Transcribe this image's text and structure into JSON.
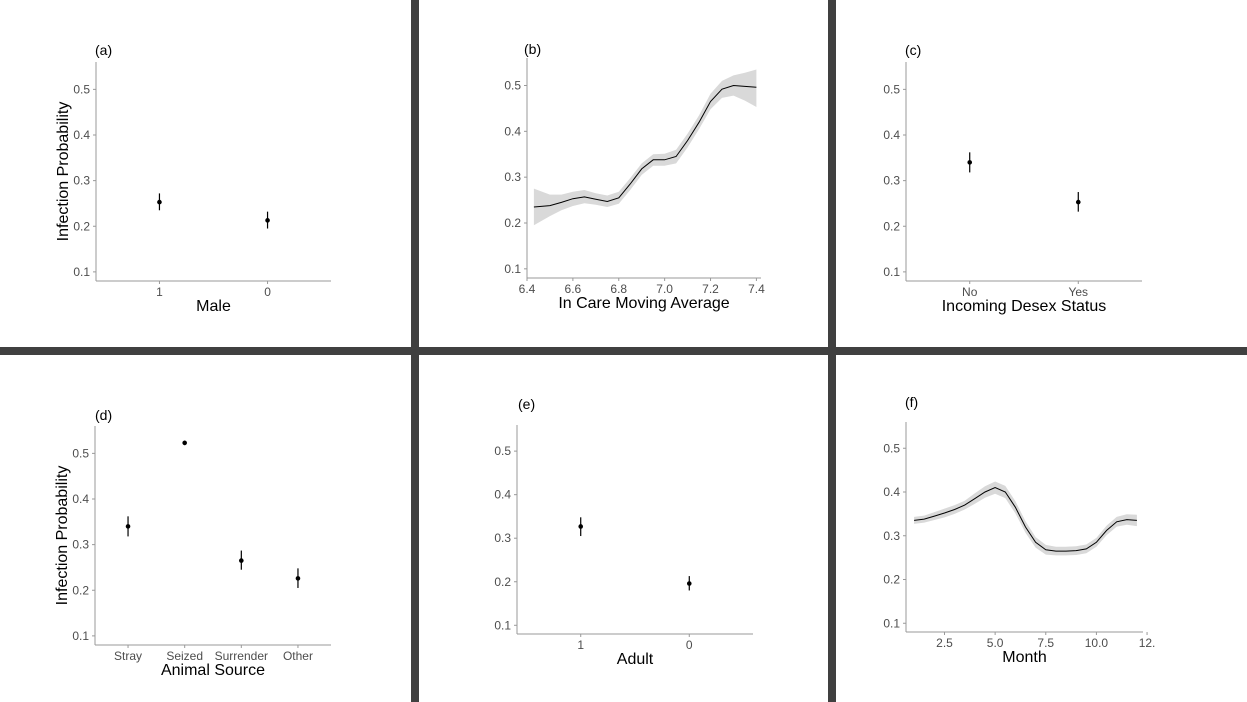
{
  "colors": {
    "divider": "#404040",
    "band": "#d9d9d9",
    "mark": "#000000",
    "axis": "#999999",
    "tick_text": "#4d4d4d"
  },
  "chart_data": [
    {
      "id": "a",
      "panel_label": "(a)",
      "type": "scatter",
      "xlabel": "Male",
      "ylabel": "Infection Probability",
      "ylim": [
        0.08,
        0.56
      ],
      "yticks": [
        0.1,
        0.2,
        0.3,
        0.4,
        0.5
      ],
      "grid": false,
      "categories": [
        "1",
        "0"
      ],
      "points": [
        {
          "x": "1",
          "y": 0.253,
          "lo": 0.235,
          "hi": 0.272
        },
        {
          "x": "0",
          "y": 0.213,
          "lo": 0.195,
          "hi": 0.232
        }
      ]
    },
    {
      "id": "b",
      "panel_label": "(b)",
      "type": "line",
      "xlabel": "In Care Moving Average",
      "ylabel": "",
      "xlim": [
        6.4,
        7.42
      ],
      "xticks": [
        6.4,
        6.6,
        6.8,
        7.0,
        7.2,
        7.4
      ],
      "ylim": [
        0.08,
        0.56
      ],
      "yticks": [
        0.1,
        0.2,
        0.3,
        0.4,
        0.5
      ],
      "grid": false,
      "series": [
        {
          "x": [
            6.43,
            6.5,
            6.55,
            6.6,
            6.65,
            6.7,
            6.75,
            6.8,
            6.85,
            6.9,
            6.95,
            7.0,
            7.05,
            7.1,
            7.15,
            7.2,
            7.25,
            7.3,
            7.35,
            7.4
          ],
          "y": [
            0.235,
            0.238,
            0.245,
            0.253,
            0.257,
            0.252,
            0.247,
            0.255,
            0.285,
            0.318,
            0.338,
            0.338,
            0.345,
            0.38,
            0.42,
            0.465,
            0.492,
            0.5,
            0.498,
            0.496
          ],
          "lo": [
            0.195,
            0.215,
            0.228,
            0.237,
            0.243,
            0.24,
            0.235,
            0.242,
            0.272,
            0.305,
            0.325,
            0.325,
            0.33,
            0.365,
            0.405,
            0.448,
            0.473,
            0.478,
            0.467,
            0.453
          ],
          "hi": [
            0.275,
            0.262,
            0.262,
            0.268,
            0.272,
            0.265,
            0.26,
            0.268,
            0.298,
            0.33,
            0.35,
            0.351,
            0.36,
            0.395,
            0.435,
            0.482,
            0.51,
            0.522,
            0.528,
            0.535
          ]
        }
      ]
    },
    {
      "id": "c",
      "panel_label": "(c)",
      "type": "scatter",
      "xlabel": "Incoming Desex Status",
      "ylabel": "",
      "ylim": [
        0.08,
        0.56
      ],
      "yticks": [
        0.1,
        0.2,
        0.3,
        0.4,
        0.5
      ],
      "grid": false,
      "categories": [
        "No",
        "Yes"
      ],
      "points": [
        {
          "x": "No",
          "y": 0.34,
          "lo": 0.318,
          "hi": 0.362
        },
        {
          "x": "Yes",
          "y": 0.253,
          "lo": 0.232,
          "hi": 0.275
        }
      ]
    },
    {
      "id": "d",
      "panel_label": "(d)",
      "type": "scatter",
      "xlabel": "Animal Source",
      "ylabel": "Infection Probability",
      "ylim": [
        0.08,
        0.56
      ],
      "yticks": [
        0.1,
        0.2,
        0.3,
        0.4,
        0.5
      ],
      "grid": false,
      "categories": [
        "Stray",
        "Seized",
        "Surrender",
        "Other"
      ],
      "points": [
        {
          "x": "Stray",
          "y": 0.34,
          "lo": 0.318,
          "hi": 0.362
        },
        {
          "x": "Seized",
          "y": 0.523,
          "lo": 0.518,
          "hi": 0.528
        },
        {
          "x": "Surrender",
          "y": 0.265,
          "lo": 0.245,
          "hi": 0.287
        },
        {
          "x": "Other",
          "y": 0.226,
          "lo": 0.205,
          "hi": 0.248
        }
      ]
    },
    {
      "id": "e",
      "panel_label": "(e)",
      "type": "scatter",
      "xlabel": "Adult",
      "ylabel": "",
      "ylim": [
        0.08,
        0.56
      ],
      "yticks": [
        0.1,
        0.2,
        0.3,
        0.4,
        0.5
      ],
      "grid": false,
      "categories": [
        "1",
        "0"
      ],
      "points": [
        {
          "x": "1",
          "y": 0.327,
          "lo": 0.305,
          "hi": 0.348
        },
        {
          "x": "0",
          "y": 0.196,
          "lo": 0.18,
          "hi": 0.213
        }
      ]
    },
    {
      "id": "f",
      "panel_label": "(f)",
      "type": "line",
      "xlabel": "Month",
      "ylabel": "",
      "xlim": [
        0.6,
        12.3
      ],
      "xticks": [
        2.5,
        5.0,
        7.5,
        10.0,
        12.5
      ],
      "xtick_labels": [
        "2.5",
        "5.0",
        "7.5",
        "10.0",
        "12."
      ],
      "ylim": [
        0.08,
        0.56
      ],
      "yticks": [
        0.1,
        0.2,
        0.3,
        0.4,
        0.5
      ],
      "grid": false,
      "series": [
        {
          "x": [
            1,
            1.5,
            2,
            2.5,
            3,
            3.5,
            4,
            4.5,
            5,
            5.5,
            6,
            6.5,
            7,
            7.5,
            8,
            8.5,
            9,
            9.5,
            10,
            10.5,
            11,
            11.5,
            12
          ],
          "y": [
            0.335,
            0.338,
            0.345,
            0.352,
            0.36,
            0.37,
            0.385,
            0.4,
            0.41,
            0.4,
            0.365,
            0.32,
            0.285,
            0.268,
            0.265,
            0.265,
            0.266,
            0.27,
            0.285,
            0.312,
            0.332,
            0.337,
            0.335
          ],
          "lo": [
            0.327,
            0.33,
            0.336,
            0.342,
            0.35,
            0.36,
            0.373,
            0.387,
            0.396,
            0.386,
            0.351,
            0.307,
            0.273,
            0.257,
            0.255,
            0.255,
            0.256,
            0.26,
            0.275,
            0.301,
            0.321,
            0.325,
            0.322
          ],
          "hi": [
            0.343,
            0.346,
            0.354,
            0.362,
            0.37,
            0.38,
            0.397,
            0.413,
            0.424,
            0.414,
            0.379,
            0.333,
            0.297,
            0.279,
            0.275,
            0.275,
            0.276,
            0.28,
            0.295,
            0.323,
            0.343,
            0.349,
            0.348
          ]
        }
      ]
    }
  ]
}
